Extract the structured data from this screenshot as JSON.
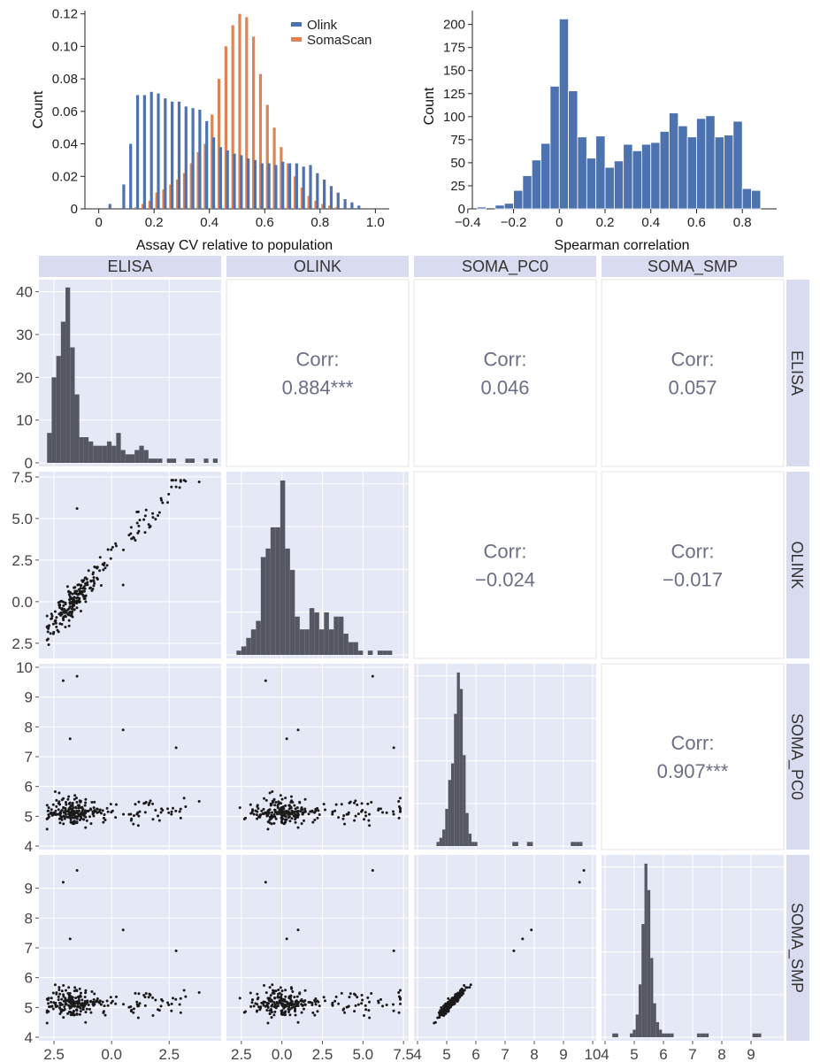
{
  "colors": {
    "olink": "#4c72b0",
    "somascan": "#dd8452",
    "panel_bg": "#e5e9f6",
    "strip_bg": "#d9dcf0",
    "grid": "#ffffff",
    "bar_dark": "#555763",
    "point": "#1a1a1a",
    "corr_text": "#6b6f86"
  },
  "chart_data": [
    {
      "type": "bar",
      "xlabel": "Assay CV relative to population",
      "ylabel": "Count",
      "xlim": [
        -0.05,
        1.05
      ],
      "ylim": [
        0,
        0.122
      ],
      "xticks": [
        "0",
        "0.2",
        "0.4",
        "0.6",
        "0.8",
        "1.0"
      ],
      "xtick_values": [
        0,
        0.2,
        0.4,
        0.6,
        0.8,
        1.0
      ],
      "yticks": [
        "0",
        "0.02",
        "0.04",
        "0.06",
        "0.08",
        "0.10",
        "0.12"
      ],
      "ytick_values": [
        0,
        0.02,
        0.04,
        0.06,
        0.08,
        0.1,
        0.12
      ],
      "legend_position": "top-right",
      "bin_centers": [
        0.05,
        0.1,
        0.125,
        0.15,
        0.175,
        0.2,
        0.225,
        0.25,
        0.275,
        0.3,
        0.325,
        0.35,
        0.375,
        0.4,
        0.425,
        0.45,
        0.475,
        0.5,
        0.525,
        0.55,
        0.575,
        0.6,
        0.625,
        0.65,
        0.675,
        0.7,
        0.725,
        0.75,
        0.775,
        0.8,
        0.825,
        0.85,
        0.875,
        0.9,
        0.925,
        0.95
      ],
      "series": [
        {
          "name": "Olink",
          "values": [
            0.003,
            0.015,
            0.04,
            0.07,
            0.07,
            0.072,
            0.071,
            0.068,
            0.066,
            0.066,
            0.063,
            0.062,
            0.061,
            0.054,
            0.044,
            0.038,
            0.036,
            0.034,
            0.033,
            0.031,
            0.03,
            0.028,
            0.028,
            0.027,
            0.029,
            0.028,
            0.028,
            0.026,
            0.027,
            0.022,
            0.018,
            0.014,
            0.01,
            0.006,
            0.004,
            0.002
          ]
        },
        {
          "name": "SomaScan",
          "values": [
            0.0,
            0.0,
            0.001,
            0.003,
            0.005,
            0.01,
            0.012,
            0.015,
            0.018,
            0.022,
            0.028,
            0.035,
            0.04,
            0.058,
            0.08,
            0.1,
            0.113,
            0.12,
            0.118,
            0.106,
            0.083,
            0.064,
            0.05,
            0.038,
            0.028,
            0.02,
            0.013,
            0.008,
            0.005,
            0.003,
            0.002,
            0.001,
            0.0,
            0.0,
            0.0,
            0.0
          ]
        }
      ]
    },
    {
      "type": "bar",
      "xlabel": "Spearman correlation",
      "ylabel": "Count",
      "xlim": [
        -0.38,
        0.95
      ],
      "ylim": [
        0,
        215
      ],
      "xticks": [
        "−0.4",
        "−0.2",
        "0",
        "0.2",
        "0.4",
        "0.6",
        "0.8"
      ],
      "xtick_values": [
        -0.4,
        -0.2,
        0,
        0.2,
        0.4,
        0.6,
        0.8
      ],
      "yticks": [
        "0",
        "25",
        "50",
        "75",
        "100",
        "125",
        "150",
        "175",
        "200"
      ],
      "ytick_values": [
        0,
        25,
        50,
        75,
        100,
        125,
        150,
        175,
        200
      ],
      "bin_edges": [
        -0.36,
        -0.32,
        -0.28,
        -0.24,
        -0.2,
        -0.16,
        -0.12,
        -0.08,
        -0.04,
        0.0,
        0.04,
        0.08,
        0.12,
        0.16,
        0.2,
        0.24,
        0.28,
        0.32,
        0.36,
        0.4,
        0.44,
        0.48,
        0.52,
        0.56,
        0.6,
        0.64,
        0.68,
        0.72,
        0.76,
        0.8,
        0.84,
        0.88,
        0.92
      ],
      "values": [
        2,
        0,
        4,
        6,
        20,
        36,
        53,
        71,
        133,
        206,
        128,
        78,
        55,
        79,
        45,
        52,
        70,
        63,
        70,
        72,
        84,
        104,
        90,
        78,
        98,
        101,
        78,
        80,
        95,
        22,
        20,
        0
      ],
      "color": "#4c72b0"
    },
    {
      "type": "scatter",
      "variables": [
        "ELISA",
        "OLINK",
        "SOMA_PC0",
        "SOMA_SMP"
      ],
      "axis_ticks": {
        "ELISA": {
          "range": [
            -3.0,
            4.6
          ],
          "ticks": [
            "2.5",
            "0.0",
            "2.5"
          ],
          "tick_values": [
            -2.5,
            0.0,
            2.5
          ]
        },
        "OLINK": {
          "range": [
            -3.2,
            7.6
          ],
          "ticks": [
            "2.5",
            "0.0",
            "2.5",
            "5.0",
            "7.5"
          ],
          "tick_values": [
            -2.5,
            0.0,
            2.5,
            5.0,
            7.5
          ]
        },
        "SOMA_PC0": {
          "range": [
            4.0,
            10.0
          ],
          "ticks": [
            "4",
            "5",
            "6",
            "7",
            "8",
            "9",
            "10"
          ],
          "tick_values": [
            4,
            5,
            6,
            7,
            8,
            9,
            10
          ]
        },
        "SOMA_SMP": {
          "range": [
            4.0,
            10.0
          ],
          "ticks": [
            "4",
            "5",
            "6",
            "7",
            "8",
            "9"
          ],
          "tick_values": [
            4,
            5,
            6,
            7,
            8,
            9
          ]
        }
      },
      "diag_count_axis": {
        "ylim": [
          0,
          42
        ],
        "ticks": [
          "0",
          "10",
          "20",
          "30",
          "40"
        ],
        "tick_values": [
          0,
          10,
          20,
          30,
          40
        ]
      },
      "olink_left_axis": {
        "ticks": [
          "7.5",
          "5.0",
          "2.5",
          "0.0",
          "2.5"
        ],
        "tick_values": [
          7.5,
          5.0,
          2.5,
          0.0,
          -2.5
        ]
      },
      "correlations": [
        {
          "row": "ELISA",
          "col": "OLINK",
          "label": "Corr:",
          "value": "0.884***"
        },
        {
          "row": "ELISA",
          "col": "SOMA_PC0",
          "label": "Corr:",
          "value": "0.046"
        },
        {
          "row": "ELISA",
          "col": "SOMA_SMP",
          "label": "Corr:",
          "value": "0.057"
        },
        {
          "row": "OLINK",
          "col": "SOMA_PC0",
          "label": "Corr:",
          "value": "−0.024"
        },
        {
          "row": "OLINK",
          "col": "SOMA_SMP",
          "label": "Corr:",
          "value": "−0.017"
        },
        {
          "row": "SOMA_PC0",
          "col": "SOMA_SMP",
          "label": "Corr:",
          "value": "0.907***"
        }
      ],
      "diag_histograms": {
        "ELISA": {
          "start": -2.8,
          "width": 0.2,
          "counts": [
            7,
            20,
            25,
            33,
            41,
            27,
            16,
            6,
            6,
            5,
            4,
            4,
            4,
            5,
            4,
            7,
            3,
            2,
            2,
            3,
            4,
            3,
            1,
            1,
            1,
            0,
            1,
            1,
            0,
            0,
            1,
            1,
            0,
            0,
            1,
            0,
            1
          ]
        },
        "OLINK": {
          "start": -2.8,
          "width": 0.3,
          "counts": [
            1,
            2,
            4,
            6,
            8,
            23,
            25,
            30,
            30,
            41,
            25,
            20,
            9,
            6,
            6,
            11,
            10,
            6,
            10,
            6,
            9,
            9,
            5,
            3,
            3,
            1,
            0,
            1,
            0,
            1,
            1,
            1
          ]
        },
        "SOMA_PC0": {
          "start": 4.65,
          "width": 0.1,
          "counts": [
            1,
            2,
            4,
            9,
            16,
            20,
            32,
            42,
            38,
            22,
            8,
            3,
            1,
            1,
            0,
            0,
            0,
            0,
            0,
            0,
            0,
            0,
            0,
            0,
            0,
            0,
            1,
            1,
            0,
            0,
            0,
            1,
            1,
            0,
            0,
            0,
            0,
            0,
            0,
            0,
            0,
            0,
            0,
            0,
            0,
            0,
            1,
            1,
            1,
            1
          ]
        },
        "SOMA_SMP": {
          "start": 4.25,
          "width": 0.1,
          "counts": [
            1,
            1,
            0,
            0,
            0,
            0,
            1,
            2,
            6,
            14,
            30,
            46,
            39,
            21,
            9,
            4,
            2,
            1,
            1,
            1,
            1,
            0,
            0,
            0,
            0,
            0,
            0,
            0,
            0,
            1,
            1,
            1,
            1,
            0,
            0,
            0,
            0,
            0,
            0,
            0,
            0,
            0,
            0,
            0,
            0,
            0,
            0,
            0,
            1,
            1,
            1
          ]
        }
      }
    }
  ]
}
